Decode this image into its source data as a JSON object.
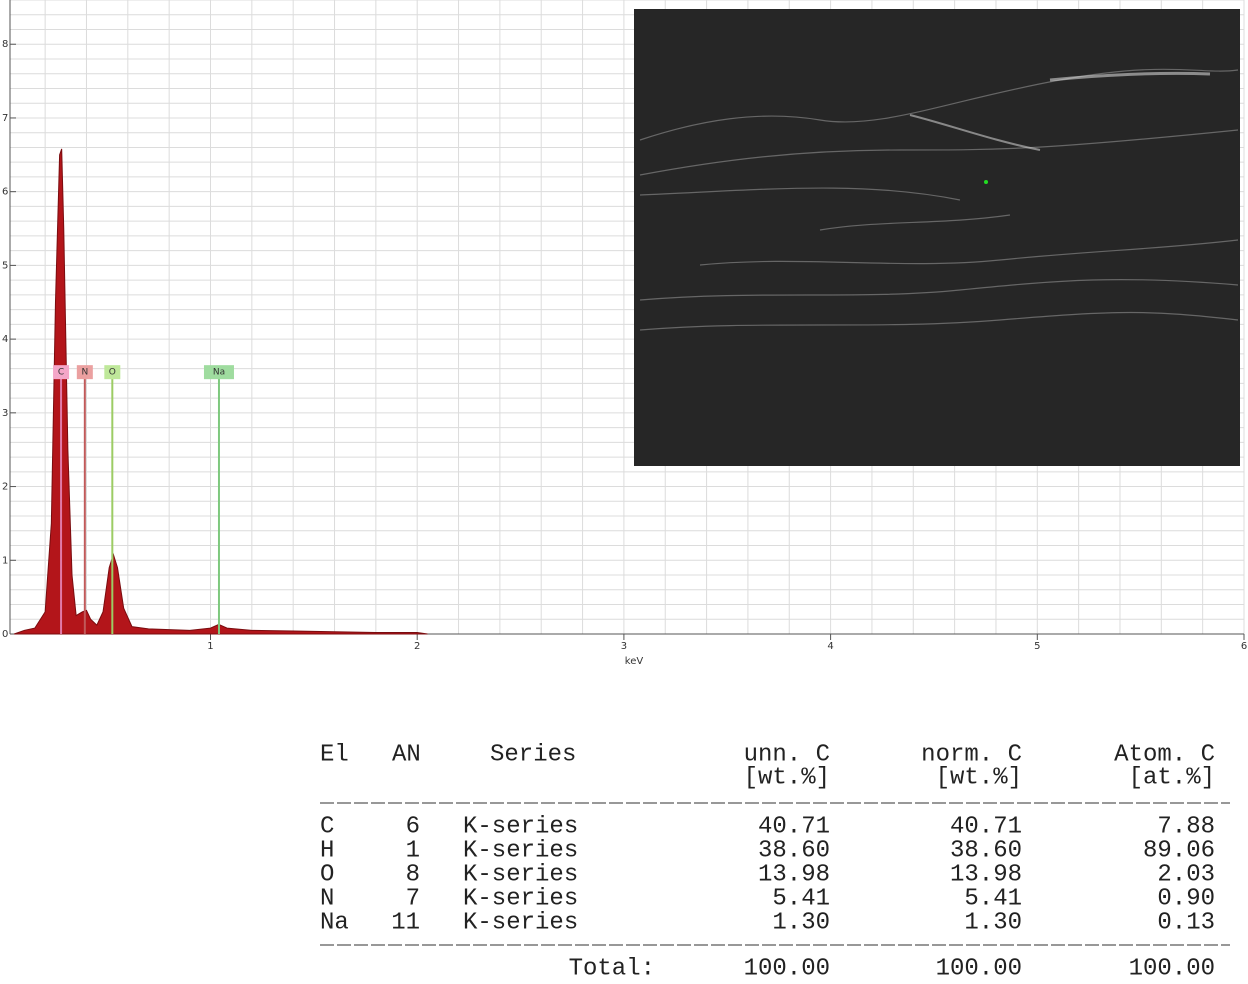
{
  "chart_data": {
    "type": "area",
    "xlabel": "keV",
    "x": [
      0.05,
      0.1,
      0.15,
      0.2,
      0.23,
      0.25,
      0.27,
      0.28,
      0.29,
      0.31,
      0.33,
      0.35,
      0.38,
      0.4,
      0.42,
      0.45,
      0.48,
      0.51,
      0.53,
      0.55,
      0.58,
      0.62,
      0.7,
      0.8,
      0.9,
      1.0,
      1.04,
      1.08,
      1.2,
      1.4,
      1.6,
      1.8,
      2.0,
      2.05
    ],
    "values": [
      0,
      0.05,
      0.08,
      0.3,
      1.5,
      4.5,
      6.5,
      6.58,
      5.5,
      2.5,
      0.8,
      0.25,
      0.3,
      0.32,
      0.2,
      0.12,
      0.3,
      0.9,
      1.08,
      0.9,
      0.35,
      0.1,
      0.07,
      0.06,
      0.05,
      0.08,
      0.13,
      0.08,
      0.05,
      0.04,
      0.03,
      0.02,
      0.02,
      0
    ],
    "color": "#b3151a",
    "xlim": [
      0.03,
      6
    ],
    "xticks": [
      1,
      2,
      3,
      4,
      5,
      6
    ],
    "ylim": [
      0,
      8.6
    ],
    "yticks": [
      0,
      1,
      2,
      3,
      4,
      5,
      6,
      7,
      8
    ],
    "grid": true,
    "grid_step": 0.2,
    "markers": [
      {
        "label": "C",
        "x": 0.277,
        "color": "#f4a6c8",
        "line_color": "#e07aa8"
      },
      {
        "label": "N",
        "x": 0.392,
        "color": "#eba0a0",
        "line_color": "#c05a5a"
      },
      {
        "label": "O",
        "x": 0.525,
        "color": "#bfe89a",
        "line_color": "#9ccc64"
      },
      {
        "label": "Na",
        "x": 1.041,
        "color": "#9fdc9f",
        "line_color": "#7ec87e"
      }
    ]
  },
  "table": {
    "header": [
      "El",
      "AN",
      "Series",
      "unn. C",
      "norm. C",
      "Atom. C"
    ],
    "units": [
      "[wt.%]",
      "[wt.%]",
      "[at.%]"
    ],
    "rows": [
      [
        "C",
        "6",
        "K-series",
        "40.71",
        "40.71",
        "7.88"
      ],
      [
        "H",
        "1",
        "K-series",
        "38.60",
        "38.60",
        "89.06"
      ],
      [
        "O",
        "8",
        "K-series",
        "13.98",
        "13.98",
        "2.03"
      ],
      [
        "N",
        "7",
        "K-series",
        "5.41",
        "5.41",
        "0.90"
      ],
      [
        "Na",
        "11",
        "K-series",
        "1.30",
        "1.30",
        "0.13"
      ]
    ],
    "total": [
      "Total:",
      "100.00",
      "100.00",
      "100.00"
    ]
  }
}
